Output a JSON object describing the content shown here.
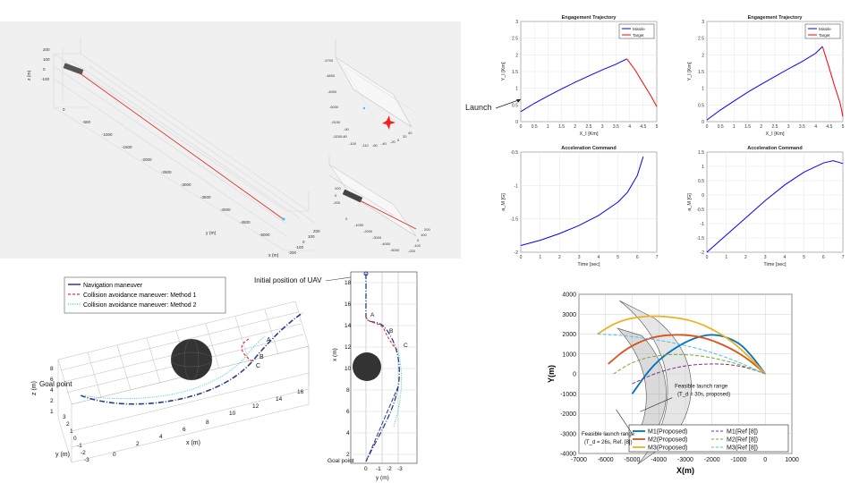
{
  "panel1": {
    "axis_labels": {
      "z": "z (m)",
      "y": "y (m)",
      "x": "x (m)"
    },
    "z_ticks": [
      "200",
      "100",
      "0",
      "-100"
    ],
    "y_ticks": [
      "0",
      "-500",
      "-1000",
      "-1500",
      "-2000",
      "-2500",
      "-3000",
      "-3500",
      "-4000",
      "-4500",
      "-5000"
    ],
    "x_ticks": [
      "-200",
      "-100",
      "0",
      "100",
      "200"
    ],
    "inset_top": {
      "y_ticks": [
        "-4700",
        "-4800",
        "-4900",
        "-5000",
        "-5100",
        "-5200"
      ],
      "z_ticks": [
        "-80",
        "-90",
        "-100",
        "-110"
      ],
      "x_ticks": [
        "-60",
        "-40",
        "-20",
        "0",
        "20",
        "40"
      ]
    },
    "inset_bottom": {
      "y_ticks": [
        "0",
        "-1000",
        "-2000",
        "-3000",
        "-4000",
        "-5000"
      ],
      "z_ticks": [
        "200",
        "0",
        "-200"
      ],
      "x_ticks": [
        "-200",
        "-100",
        "0",
        "100",
        "200"
      ]
    }
  },
  "panel2": {
    "plots": [
      {
        "title": "Engagement Trajectory",
        "xlabel": "X_I [Km]",
        "ylabel": "Y_I [Km]",
        "legend": [
          "Missile",
          "Target"
        ],
        "xticks": [
          "0",
          "0.5",
          "1",
          "1.5",
          "2",
          "2.5",
          "3",
          "3.5",
          "4",
          "4.5",
          "5"
        ],
        "yticks": [
          "0",
          "0.5",
          "1",
          "1.5",
          "2",
          "2.5",
          "3"
        ],
        "annotation": "Launch"
      },
      {
        "title": "Engagement Trajectory",
        "xlabel": "X_I [Km]",
        "ylabel": "Y_I [Km]",
        "legend": [
          "Missile",
          "Target"
        ],
        "xticks": [
          "0",
          "0.5",
          "1",
          "1.5",
          "2",
          "2.5",
          "3",
          "3.5",
          "4",
          "4.5",
          "5"
        ],
        "yticks": [
          "0",
          "0.5",
          "1",
          "1.5",
          "2",
          "2.5",
          "3"
        ]
      },
      {
        "title": "Acceleration Command",
        "xlabel": "Time [sec]",
        "ylabel": "a_M [G]",
        "xticks": [
          "0",
          "1",
          "2",
          "3",
          "4",
          "5",
          "6",
          "7"
        ],
        "yticks": [
          "-0.5",
          "-1",
          "-1.5",
          "-2"
        ]
      },
      {
        "title": "Acceleration Command",
        "xlabel": "Time [sec]",
        "ylabel": "a_M [G]",
        "xticks": [
          "0",
          "1",
          "2",
          "3",
          "4",
          "5",
          "6",
          "7"
        ],
        "yticks": [
          "1.5",
          "1",
          "0.5",
          "0",
          "-0.5",
          "-1",
          "-1.5",
          "-2"
        ]
      }
    ]
  },
  "panel3": {
    "legend": [
      "Navigation maneuver",
      "Collision avoidance maneuver: Method 1",
      "Collision avoidance maneuver: Method 2"
    ],
    "annotation_initial": "Initial position of UAV",
    "goal_label": "Goal point",
    "goal_label_right": "Goal point",
    "points": [
      "A",
      "B",
      "C"
    ],
    "x_ticks_3d": [
      "0",
      "2",
      "4",
      "6",
      "8",
      "10",
      "12",
      "14",
      "16"
    ],
    "y_ticks_3d": [
      "3",
      "2",
      "1",
      "0",
      "-1",
      "-2",
      "-3"
    ],
    "z_ticks_3d": [
      "8",
      "6",
      "4",
      "2",
      "1"
    ],
    "xlabel_3d": "x (m)",
    "ylabel_3d": "y (m)",
    "zlabel_3d": "z (m)",
    "right_y_ticks": [
      "18",
      "16",
      "14",
      "12",
      "10",
      "8",
      "6",
      "4",
      "2"
    ],
    "right_x_ticks": [
      "0",
      "-1",
      "-2",
      "-3"
    ],
    "right_ylabel": "x (m)",
    "right_xlabel": "y (m)"
  },
  "panel4": {
    "annotation_proposed": "Feasible launch range (T_d = 30s, proposed)",
    "annotation_proposed_line1": "Feasible launch range",
    "annotation_proposed_line2": "(T_d = 30s, proposed)",
    "annotation_ref_line1": "Feasible launch range",
    "annotation_ref_line2": "(T_d = 26s, Ref. [8])"
  },
  "chart_data": [
    {
      "type": "line",
      "title": "Engagement Trajectory",
      "xlabel": "X_I [Km]",
      "ylabel": "Y_I [Km]",
      "xlim": [
        0,
        5
      ],
      "ylim": [
        0,
        3
      ],
      "series": [
        {
          "name": "Missile",
          "x": [
            0,
            0.5,
            1,
            1.5,
            2,
            2.5,
            3,
            3.5,
            3.9
          ],
          "y": [
            0.3,
            0.55,
            0.77,
            0.98,
            1.18,
            1.37,
            1.55,
            1.72,
            1.88
          ]
        },
        {
          "name": "Target",
          "x": [
            3.9,
            4.2,
            4.5,
            4.8,
            5
          ],
          "y": [
            1.88,
            1.55,
            1.15,
            0.75,
            0.45
          ]
        }
      ]
    },
    {
      "type": "line",
      "title": "Engagement Trajectory",
      "xlabel": "X_I [Km]",
      "ylabel": "Y_I [Km]",
      "xlim": [
        0,
        5
      ],
      "ylim": [
        0,
        3
      ],
      "series": [
        {
          "name": "Missile",
          "x": [
            0,
            0.5,
            1,
            1.5,
            2,
            2.5,
            3,
            3.5,
            4,
            4.25
          ],
          "y": [
            0.05,
            0.35,
            0.62,
            0.88,
            1.12,
            1.35,
            1.58,
            1.8,
            2.05,
            2.25
          ]
        },
        {
          "name": "Target",
          "x": [
            4.25,
            4.5,
            4.7,
            4.9,
            5
          ],
          "y": [
            2.25,
            1.6,
            1.05,
            0.55,
            0.15
          ]
        }
      ]
    },
    {
      "type": "line",
      "title": "Acceleration Command",
      "xlabel": "Time [sec]",
      "ylabel": "a_M [G]",
      "xlim": [
        0,
        7
      ],
      "ylim": [
        -2,
        -0.5
      ],
      "series": [
        {
          "x": [
            0,
            1,
            2,
            3,
            4,
            5,
            5.5,
            6,
            6.3
          ],
          "y": [
            -1.9,
            -1.82,
            -1.72,
            -1.6,
            -1.45,
            -1.25,
            -1.1,
            -0.85,
            -0.57
          ]
        }
      ]
    },
    {
      "type": "line",
      "title": "Acceleration Command",
      "xlabel": "Time [sec]",
      "ylabel": "a_M [G]",
      "xlim": [
        0,
        7
      ],
      "ylim": [
        -2,
        1.5
      ],
      "series": [
        {
          "x": [
            0,
            1,
            2,
            3,
            4,
            5,
            6,
            6.5,
            7
          ],
          "y": [
            -2,
            -1.4,
            -0.8,
            -0.2,
            0.35,
            0.8,
            1.12,
            1.2,
            1.1
          ]
        }
      ]
    },
    {
      "type": "line",
      "xlabel": "X(m)",
      "ylabel": "Y(m)",
      "xlim": [
        -7000,
        1000
      ],
      "ylim": [
        -4000,
        4000
      ],
      "xticks": [
        "-7000",
        "-6000",
        "-5000",
        "-4000",
        "-3000",
        "-2000",
        "-1000",
        "0",
        "1000"
      ],
      "yticks": [
        "4000",
        "3000",
        "2000",
        "1000",
        "0",
        "-1000",
        "-2000",
        "-3000",
        "-4000"
      ],
      "series": [
        {
          "name": "M1(Proposed)",
          "color": "#0072BD",
          "dash": false,
          "x": [
            -5000,
            -4200,
            -3300,
            -2500,
            -1800,
            -1000,
            -500,
            0
          ],
          "y": [
            -1000,
            500,
            1400,
            1900,
            2000,
            1600,
            900,
            0
          ]
        },
        {
          "name": "M2(Proposed)",
          "color": "#D95319",
          "dash": false,
          "x": [
            -5900,
            -5200,
            -4300,
            -3300,
            -2300,
            -1300,
            -600,
            0
          ],
          "y": [
            500,
            1300,
            1850,
            2000,
            1850,
            1300,
            700,
            0
          ]
        },
        {
          "name": "M3(Proposed)",
          "color": "#EDB120",
          "dash": false,
          "x": [
            -6300,
            -5600,
            -4700,
            -3700,
            -2600,
            -1500,
            -700,
            0
          ],
          "y": [
            2000,
            2600,
            2900,
            2900,
            2650,
            1900,
            1000,
            0
          ]
        },
        {
          "name": "M1(Ref [8])",
          "color": "#7E2F8E",
          "dash": true,
          "x": [
            -5000,
            -4200,
            -3300,
            -2400,
            -1500,
            -800,
            -300,
            0
          ],
          "y": [
            -500,
            0,
            350,
            500,
            500,
            350,
            150,
            0
          ]
        },
        {
          "name": "M2(Ref [8])",
          "color": "#77AC30",
          "dash": true,
          "x": [
            -5700,
            -5000,
            -4200,
            -3300,
            -2300,
            -1300,
            -600,
            0
          ],
          "y": [
            0,
            600,
            900,
            1000,
            900,
            600,
            300,
            0
          ]
        },
        {
          "name": "M3(Ref [8])",
          "color": "#4DBEEE",
          "dash": true,
          "x": [
            -6300,
            -5500,
            -4500,
            -3400,
            -2300,
            -1300,
            -500,
            0
          ],
          "y": [
            2000,
            1950,
            1800,
            1550,
            1200,
            750,
            300,
            0
          ]
        }
      ],
      "legend_placement": "bottom"
    }
  ]
}
